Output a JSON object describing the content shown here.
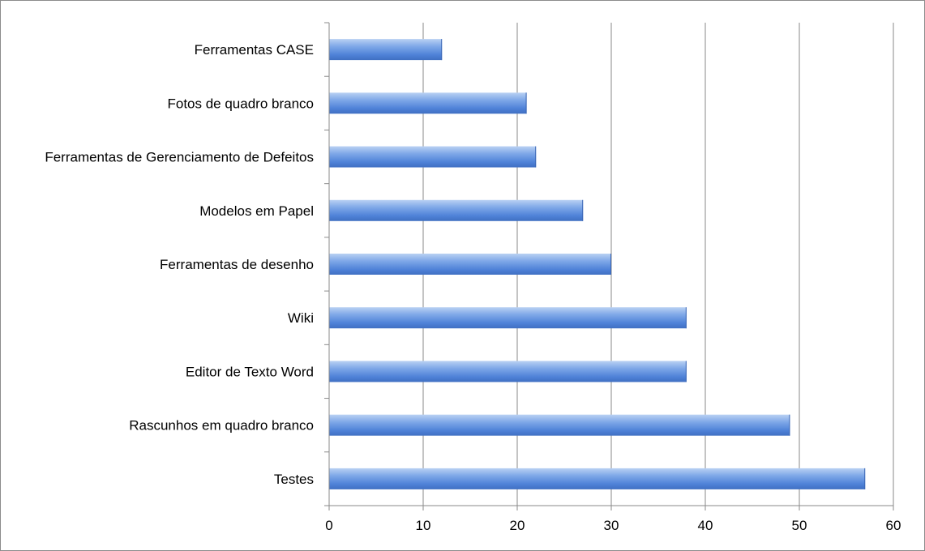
{
  "chart_data": {
    "type": "bar",
    "orientation": "horizontal",
    "title": "",
    "xlabel": "",
    "ylabel": "",
    "categories": [
      "Ferramentas CASE",
      "Fotos de quadro branco",
      "Ferramentas de Gerenciamento de Defeitos",
      "Modelos em Papel",
      "Ferramentas de desenho",
      "Wiki",
      "Editor de Texto Word",
      "Rascunhos em quadro branco",
      "Testes"
    ],
    "values": [
      12,
      21,
      22,
      27,
      30,
      38,
      38,
      49,
      57
    ],
    "xlim": [
      0,
      60
    ],
    "xticks": [
      "0",
      "10",
      "20",
      "30",
      "40",
      "50",
      "60"
    ],
    "grid": "vertical",
    "legend": "none",
    "bar_color": "#5b8ee0"
  }
}
